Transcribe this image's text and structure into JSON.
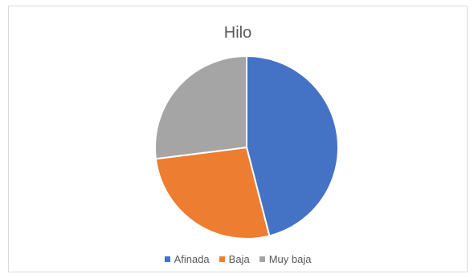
{
  "chart_data": {
    "type": "pie",
    "title": "Hilo",
    "categories": [
      "Afinada",
      "Baja",
      "Muy baja"
    ],
    "values": [
      46,
      27,
      27
    ],
    "colors": [
      "#4472c4",
      "#ed7d31",
      "#a5a5a5"
    ],
    "legend_position": "bottom"
  }
}
